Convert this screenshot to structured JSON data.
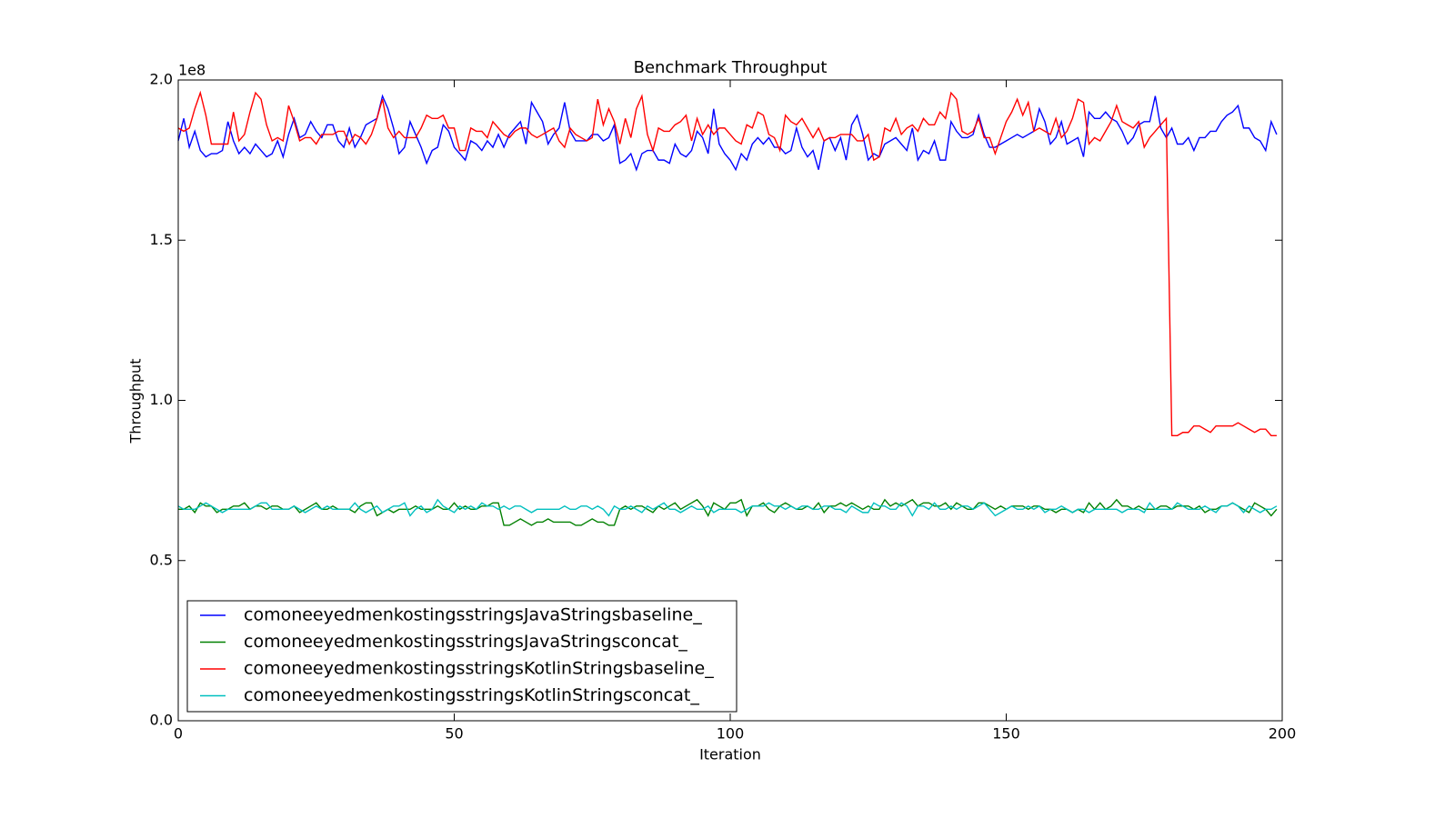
{
  "chart_data": {
    "type": "line",
    "title": "Benchmark Throughput",
    "x_label": "Iteration",
    "y_label": "Throughput",
    "y_offset_label": "1e8",
    "xlim": [
      0,
      200
    ],
    "xticks": [
      0,
      50,
      100,
      150,
      200
    ],
    "ylim": [
      0,
      2.0
    ],
    "yticks": [
      {
        "value": 0,
        "label": "0.0"
      },
      {
        "value": 0.5,
        "label": "0.5"
      },
      {
        "value": 1.0,
        "label": "1.0"
      },
      {
        "value": 1.5,
        "label": "1.5"
      },
      {
        "value": 2.0,
        "label": "2.0"
      }
    ],
    "grid": false,
    "legend": "lower left",
    "x": [
      0,
      1,
      2,
      3,
      4,
      5,
      6,
      7,
      8,
      9,
      10,
      11,
      12,
      13,
      14,
      15,
      16,
      17,
      18,
      19,
      20,
      21,
      22,
      23,
      24,
      25,
      26,
      27,
      28,
      29,
      30,
      31,
      32,
      33,
      34,
      35,
      36,
      37,
      38,
      39,
      40,
      41,
      42,
      43,
      44,
      45,
      46,
      47,
      48,
      49,
      50,
      51,
      52,
      53,
      54,
      55,
      56,
      57,
      58,
      59,
      60,
      61,
      62,
      63,
      64,
      65,
      66,
      67,
      68,
      69,
      70,
      71,
      72,
      73,
      74,
      75,
      76,
      77,
      78,
      79,
      80,
      81,
      82,
      83,
      84,
      85,
      86,
      87,
      88,
      89,
      90,
      91,
      92,
      93,
      94,
      95,
      96,
      97,
      98,
      99,
      100,
      101,
      102,
      103,
      104,
      105,
      106,
      107,
      108,
      109,
      110,
      111,
      112,
      113,
      114,
      115,
      116,
      117,
      118,
      119,
      120,
      121,
      122,
      123,
      124,
      125,
      126,
      127,
      128,
      129,
      130,
      131,
      132,
      133,
      134,
      135,
      136,
      137,
      138,
      139,
      140,
      141,
      142,
      143,
      144,
      145,
      146,
      147,
      148,
      149,
      150,
      151,
      152,
      153,
      154,
      155,
      156,
      157,
      158,
      159,
      160,
      161,
      162,
      163,
      164,
      165,
      166,
      167,
      168,
      169,
      170,
      171,
      172,
      173,
      174,
      175,
      176,
      177,
      178,
      179,
      180,
      181,
      182,
      183,
      184,
      185,
      186,
      187,
      188,
      189,
      190,
      191,
      192,
      193,
      194,
      195,
      196,
      197,
      198,
      199
    ],
    "series": [
      {
        "name": "comoneeyedmenkostingsstringsJavaStringsbaseline_",
        "color": "#0000ff",
        "values": [
          1.81,
          1.88,
          1.79,
          1.84,
          1.78,
          1.76,
          1.77,
          1.77,
          1.78,
          1.87,
          1.81,
          1.77,
          1.79,
          1.77,
          1.8,
          1.78,
          1.76,
          1.77,
          1.81,
          1.76,
          1.83,
          1.88,
          1.82,
          1.83,
          1.87,
          1.84,
          1.82,
          1.86,
          1.86,
          1.81,
          1.79,
          1.85,
          1.79,
          1.82,
          1.86,
          1.87,
          1.88,
          1.95,
          1.91,
          1.85,
          1.77,
          1.79,
          1.87,
          1.83,
          1.79,
          1.74,
          1.78,
          1.79,
          1.86,
          1.84,
          1.79,
          1.77,
          1.75,
          1.81,
          1.8,
          1.78,
          1.81,
          1.79,
          1.83,
          1.79,
          1.83,
          1.85,
          1.87,
          1.8,
          1.93,
          1.9,
          1.87,
          1.8,
          1.83,
          1.85,
          1.93,
          1.84,
          1.81,
          1.81,
          1.81,
          1.83,
          1.83,
          1.81,
          1.82,
          1.86,
          1.74,
          1.75,
          1.77,
          1.72,
          1.77,
          1.78,
          1.78,
          1.75,
          1.75,
          1.74,
          1.8,
          1.77,
          1.76,
          1.78,
          1.84,
          1.82,
          1.77,
          1.91,
          1.8,
          1.77,
          1.75,
          1.72,
          1.77,
          1.75,
          1.8,
          1.82,
          1.8,
          1.82,
          1.79,
          1.79,
          1.77,
          1.78,
          1.85,
          1.79,
          1.76,
          1.78,
          1.72,
          1.81,
          1.82,
          1.78,
          1.82,
          1.75,
          1.86,
          1.89,
          1.83,
          1.75,
          1.77,
          1.76,
          1.8,
          1.81,
          1.82,
          1.8,
          1.78,
          1.85,
          1.75,
          1.78,
          1.77,
          1.81,
          1.75,
          1.75,
          1.87,
          1.84,
          1.82,
          1.82,
          1.83,
          1.89,
          1.83,
          1.79,
          1.79,
          1.8,
          1.81,
          1.82,
          1.83,
          1.82,
          1.83,
          1.84,
          1.91,
          1.87,
          1.8,
          1.82,
          1.87,
          1.8,
          1.81,
          1.82,
          1.76,
          1.9,
          1.88,
          1.88,
          1.9,
          1.88,
          1.87,
          1.84,
          1.8,
          1.82,
          1.86,
          1.87,
          1.87,
          1.95,
          1.85,
          1.82,
          1.85,
          1.8,
          1.8,
          1.82,
          1.78,
          1.82,
          1.82,
          1.84,
          1.84,
          1.87,
          1.89,
          1.9,
          1.92,
          1.85,
          1.85,
          1.82,
          1.81,
          1.78,
          1.87,
          1.83
        ]
      },
      {
        "name": "comoneeyedmenkostingsstringsJavaStringsconcat_",
        "color": "#008000",
        "values": [
          0.66,
          0.66,
          0.67,
          0.65,
          0.68,
          0.67,
          0.67,
          0.65,
          0.66,
          0.66,
          0.67,
          0.67,
          0.68,
          0.66,
          0.67,
          0.67,
          0.66,
          0.67,
          0.67,
          0.66,
          0.66,
          0.67,
          0.65,
          0.66,
          0.67,
          0.68,
          0.66,
          0.66,
          0.67,
          0.66,
          0.66,
          0.66,
          0.65,
          0.67,
          0.68,
          0.68,
          0.64,
          0.65,
          0.66,
          0.65,
          0.66,
          0.66,
          0.66,
          0.67,
          0.66,
          0.66,
          0.66,
          0.67,
          0.66,
          0.66,
          0.68,
          0.66,
          0.67,
          0.66,
          0.66,
          0.67,
          0.67,
          0.68,
          0.68,
          0.61,
          0.61,
          0.62,
          0.63,
          0.62,
          0.61,
          0.62,
          0.62,
          0.63,
          0.62,
          0.62,
          0.62,
          0.62,
          0.61,
          0.61,
          0.62,
          0.63,
          0.62,
          0.62,
          0.61,
          0.61,
          0.66,
          0.67,
          0.66,
          0.67,
          0.67,
          0.66,
          0.65,
          0.67,
          0.66,
          0.67,
          0.68,
          0.66,
          0.67,
          0.68,
          0.69,
          0.67,
          0.64,
          0.68,
          0.67,
          0.66,
          0.68,
          0.68,
          0.69,
          0.64,
          0.67,
          0.67,
          0.68,
          0.66,
          0.65,
          0.67,
          0.68,
          0.67,
          0.66,
          0.66,
          0.67,
          0.66,
          0.68,
          0.65,
          0.67,
          0.67,
          0.68,
          0.67,
          0.68,
          0.67,
          0.66,
          0.67,
          0.66,
          0.66,
          0.69,
          0.67,
          0.68,
          0.67,
          0.68,
          0.69,
          0.67,
          0.68,
          0.68,
          0.67,
          0.67,
          0.68,
          0.66,
          0.68,
          0.67,
          0.66,
          0.66,
          0.68,
          0.68,
          0.67,
          0.66,
          0.67,
          0.66,
          0.67,
          0.67,
          0.67,
          0.66,
          0.67,
          0.67,
          0.66,
          0.66,
          0.65,
          0.66,
          0.66,
          0.65,
          0.66,
          0.65,
          0.68,
          0.66,
          0.68,
          0.66,
          0.67,
          0.69,
          0.67,
          0.67,
          0.66,
          0.67,
          0.66,
          0.66,
          0.66,
          0.67,
          0.67,
          0.66,
          0.67,
          0.67,
          0.67,
          0.66,
          0.67,
          0.65,
          0.66,
          0.66,
          0.67,
          0.67,
          0.68,
          0.67,
          0.66,
          0.65,
          0.68,
          0.67,
          0.66,
          0.64,
          0.66
        ]
      },
      {
        "name": "comoneeyedmenkostingsstringsKotlinStringsbaseline_",
        "color": "#ff0000",
        "values": [
          1.85,
          1.84,
          1.85,
          1.91,
          1.96,
          1.89,
          1.8,
          1.8,
          1.8,
          1.8,
          1.9,
          1.81,
          1.83,
          1.9,
          1.96,
          1.94,
          1.86,
          1.81,
          1.82,
          1.81,
          1.92,
          1.87,
          1.81,
          1.82,
          1.82,
          1.8,
          1.83,
          1.83,
          1.83,
          1.84,
          1.84,
          1.8,
          1.83,
          1.82,
          1.8,
          1.83,
          1.88,
          1.94,
          1.85,
          1.82,
          1.84,
          1.82,
          1.82,
          1.82,
          1.85,
          1.89,
          1.88,
          1.88,
          1.89,
          1.85,
          1.85,
          1.78,
          1.78,
          1.85,
          1.84,
          1.84,
          1.82,
          1.87,
          1.85,
          1.83,
          1.82,
          1.84,
          1.85,
          1.85,
          1.83,
          1.82,
          1.83,
          1.84,
          1.85,
          1.81,
          1.79,
          1.85,
          1.83,
          1.82,
          1.81,
          1.82,
          1.94,
          1.86,
          1.91,
          1.87,
          1.8,
          1.88,
          1.82,
          1.91,
          1.95,
          1.83,
          1.78,
          1.85,
          1.84,
          1.84,
          1.86,
          1.87,
          1.89,
          1.81,
          1.88,
          1.83,
          1.86,
          1.83,
          1.85,
          1.85,
          1.83,
          1.81,
          1.8,
          1.86,
          1.85,
          1.9,
          1.89,
          1.83,
          1.82,
          1.78,
          1.89,
          1.87,
          1.86,
          1.88,
          1.85,
          1.82,
          1.85,
          1.81,
          1.82,
          1.82,
          1.83,
          1.83,
          1.83,
          1.81,
          1.81,
          1.83,
          1.75,
          1.76,
          1.85,
          1.84,
          1.88,
          1.83,
          1.85,
          1.86,
          1.84,
          1.88,
          1.86,
          1.86,
          1.9,
          1.88,
          1.96,
          1.94,
          1.84,
          1.83,
          1.84,
          1.88,
          1.82,
          1.82,
          1.77,
          1.82,
          1.87,
          1.9,
          1.94,
          1.89,
          1.93,
          1.84,
          1.85,
          1.84,
          1.83,
          1.88,
          1.82,
          1.84,
          1.88,
          1.94,
          1.93,
          1.8,
          1.82,
          1.81,
          1.84,
          1.87,
          1.92,
          1.87,
          1.86,
          1.85,
          1.87,
          1.79,
          1.82,
          1.84,
          1.86,
          1.88,
          0.89,
          0.89,
          0.9,
          0.9,
          0.92,
          0.92,
          0.91,
          0.9,
          0.92,
          0.92,
          0.92,
          0.92,
          0.93,
          0.92,
          0.91,
          0.9,
          0.91,
          0.91,
          0.89,
          0.89
        ]
      },
      {
        "name": "comoneeyedmenkostingsstringsKotlinStringsconcat_",
        "color": "#00bfbf",
        "values": [
          0.67,
          0.66,
          0.66,
          0.66,
          0.67,
          0.68,
          0.67,
          0.66,
          0.65,
          0.66,
          0.66,
          0.66,
          0.66,
          0.66,
          0.67,
          0.68,
          0.68,
          0.66,
          0.66,
          0.66,
          0.66,
          0.67,
          0.66,
          0.65,
          0.66,
          0.67,
          0.66,
          0.67,
          0.66,
          0.66,
          0.66,
          0.66,
          0.68,
          0.66,
          0.65,
          0.66,
          0.67,
          0.65,
          0.66,
          0.67,
          0.67,
          0.68,
          0.64,
          0.66,
          0.67,
          0.65,
          0.66,
          0.69,
          0.67,
          0.66,
          0.65,
          0.67,
          0.66,
          0.67,
          0.66,
          0.68,
          0.67,
          0.67,
          0.66,
          0.67,
          0.66,
          0.67,
          0.67,
          0.66,
          0.65,
          0.66,
          0.66,
          0.66,
          0.66,
          0.66,
          0.67,
          0.66,
          0.66,
          0.67,
          0.67,
          0.66,
          0.67,
          0.66,
          0.64,
          0.67,
          0.66,
          0.66,
          0.67,
          0.66,
          0.65,
          0.67,
          0.66,
          0.67,
          0.68,
          0.66,
          0.66,
          0.65,
          0.66,
          0.67,
          0.66,
          0.66,
          0.67,
          0.65,
          0.66,
          0.66,
          0.66,
          0.66,
          0.65,
          0.66,
          0.67,
          0.67,
          0.67,
          0.68,
          0.67,
          0.67,
          0.66,
          0.67,
          0.66,
          0.67,
          0.67,
          0.66,
          0.66,
          0.67,
          0.67,
          0.66,
          0.66,
          0.65,
          0.67,
          0.66,
          0.65,
          0.65,
          0.68,
          0.67,
          0.67,
          0.66,
          0.66,
          0.68,
          0.67,
          0.64,
          0.67,
          0.67,
          0.66,
          0.68,
          0.66,
          0.66,
          0.67,
          0.66,
          0.67,
          0.67,
          0.66,
          0.67,
          0.68,
          0.66,
          0.64,
          0.65,
          0.66,
          0.67,
          0.66,
          0.66,
          0.67,
          0.66,
          0.67,
          0.65,
          0.66,
          0.66,
          0.67,
          0.66,
          0.65,
          0.66,
          0.66,
          0.65,
          0.66,
          0.66,
          0.66,
          0.66,
          0.66,
          0.65,
          0.66,
          0.66,
          0.66,
          0.65,
          0.68,
          0.66,
          0.66,
          0.66,
          0.66,
          0.68,
          0.67,
          0.66,
          0.66,
          0.66,
          0.67,
          0.66,
          0.65,
          0.67,
          0.67,
          0.68,
          0.67,
          0.65,
          0.67,
          0.66,
          0.65,
          0.66,
          0.66,
          0.67
        ]
      }
    ]
  }
}
